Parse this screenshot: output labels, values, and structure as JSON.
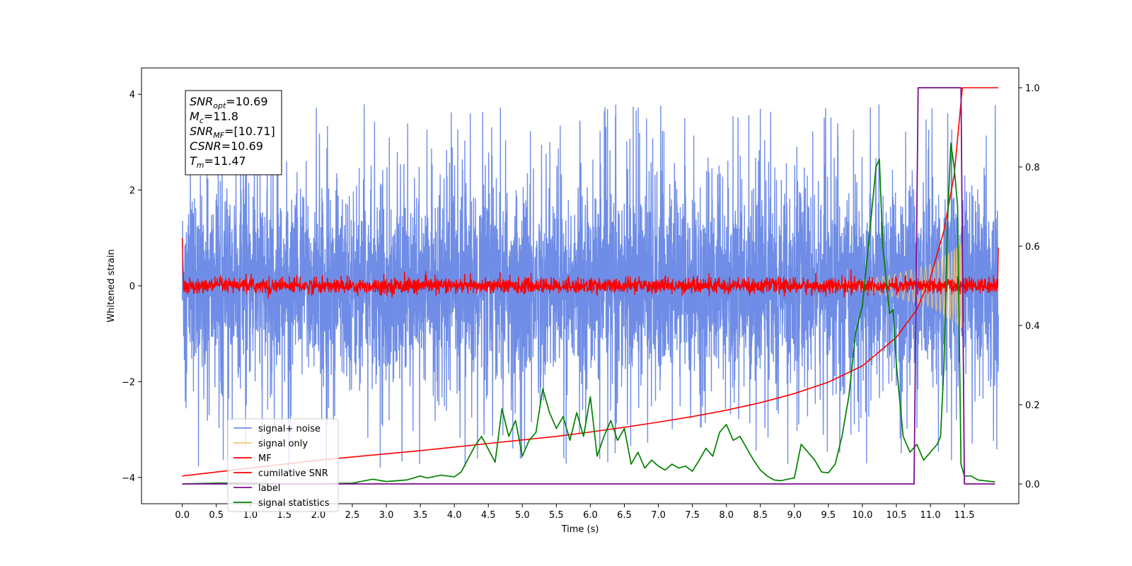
{
  "chart_data": {
    "type": "line",
    "title": "",
    "xlabel": "Time (s)",
    "ylabel": "Whitened strain",
    "y2label": "",
    "xlim": [
      -0.6,
      12.3
    ],
    "ylim": [
      -4.55,
      4.55
    ],
    "y2lim": [
      -0.05,
      1.05
    ],
    "x_ticks": [
      0.0,
      0.5,
      1.0,
      1.5,
      2.0,
      2.5,
      3.0,
      3.5,
      4.0,
      4.5,
      5.0,
      5.5,
      6.0,
      6.5,
      7.0,
      7.5,
      8.0,
      8.5,
      9.0,
      9.5,
      10.0,
      10.5,
      11.0,
      11.5
    ],
    "x_tick_labels": [
      "0.0",
      "0.5",
      "1.0",
      "1.5",
      "2.0",
      "2.5",
      "3.0",
      "3.5",
      "4.0",
      "4.5",
      "5.0",
      "5.5",
      "6.0",
      "6.5",
      "7.0",
      "7.5",
      "8.0",
      "8.5",
      "9.0",
      "9.5",
      "10.0",
      "10.5",
      "11.0",
      "11.5"
    ],
    "y_ticks": [
      -4,
      -2,
      0,
      2,
      4
    ],
    "y_tick_labels": [
      "−4",
      "−2",
      "0",
      "2",
      "4"
    ],
    "y2_ticks": [
      0.0,
      0.2,
      0.4,
      0.6,
      0.8,
      1.0
    ],
    "y2_tick_labels": [
      "0.0",
      "0.2",
      "0.4",
      "0.6",
      "0.8",
      "1.0"
    ],
    "grid": false,
    "legend_position": "lower-left",
    "annotation": {
      "lines": [
        {
          "sym": "SNR",
          "sub": "opt",
          "val": "=10.69"
        },
        {
          "sym": "M",
          "sub": "c",
          "val": "=11.8"
        },
        {
          "sym": "SNR",
          "sub": "MF",
          "val": "=[10.71]"
        },
        {
          "sym": "CSNR",
          "sub": "",
          "val": "=10.69"
        },
        {
          "sym": "T",
          "sub": "m",
          "val": "=11.47"
        }
      ]
    },
    "series": [
      {
        "name": "signal+ noise",
        "axis": "left",
        "color": "#6f8de6",
        "kind": "noise",
        "x_range": [
          0.0,
          12.0
        ],
        "amplitude_std": 1.25,
        "envelope_peak": 4.1
      },
      {
        "name": "signal only",
        "axis": "left",
        "color": "#f5c77a",
        "kind": "chirp",
        "x_range": [
          0.0,
          11.47
        ],
        "merger_time": 11.47,
        "envelope": {
          "x": [
            9.5,
            10.0,
            10.5,
            11.0,
            11.3,
            11.47
          ],
          "y": [
            0.06,
            0.12,
            0.25,
            0.45,
            0.7,
            0.9
          ]
        }
      },
      {
        "name": "MF",
        "axis": "left",
        "color": "#ff0000",
        "kind": "mf_noise",
        "x_range": [
          0.0,
          12.0
        ],
        "amplitude_std": 0.08,
        "start_value": 1.0,
        "end_value": 0.8
      },
      {
        "name": "cumilative SNR",
        "axis": "right",
        "color": "#ff0000",
        "x": [
          0.0,
          0.5,
          1.0,
          1.5,
          2.0,
          2.5,
          3.0,
          3.5,
          4.0,
          4.5,
          5.0,
          5.5,
          6.0,
          6.5,
          7.0,
          7.5,
          8.0,
          8.5,
          9.0,
          9.5,
          10.0,
          10.5,
          10.8,
          11.0,
          11.2,
          11.35,
          11.47,
          12.0
        ],
        "y": [
          0.02,
          0.03,
          0.04,
          0.05,
          0.06,
          0.068,
          0.076,
          0.084,
          0.093,
          0.102,
          0.111,
          0.12,
          0.131,
          0.143,
          0.156,
          0.17,
          0.186,
          0.205,
          0.228,
          0.257,
          0.298,
          0.37,
          0.44,
          0.52,
          0.64,
          0.78,
          1.0,
          1.0
        ]
      },
      {
        "name": "label",
        "axis": "right",
        "color": "#7b0f8e",
        "x": [
          0.0,
          10.76,
          10.82,
          11.45,
          11.5,
          11.95
        ],
        "y": [
          0.0,
          0.0,
          1.0,
          1.0,
          0.0,
          0.0
        ]
      },
      {
        "name": "signal statistics",
        "axis": "right",
        "color": "#008000",
        "x": [
          0.0,
          0.5,
          1.0,
          1.5,
          2.0,
          2.5,
          2.8,
          3.0,
          3.3,
          3.5,
          3.6,
          3.8,
          4.0,
          4.1,
          4.3,
          4.4,
          4.6,
          4.7,
          4.8,
          4.9,
          5.0,
          5.1,
          5.2,
          5.3,
          5.4,
          5.5,
          5.6,
          5.7,
          5.8,
          5.9,
          6.0,
          6.1,
          6.2,
          6.3,
          6.4,
          6.5,
          6.6,
          6.7,
          6.8,
          6.9,
          7.0,
          7.1,
          7.2,
          7.3,
          7.4,
          7.5,
          7.6,
          7.7,
          7.8,
          7.9,
          8.0,
          8.1,
          8.2,
          8.3,
          8.4,
          8.5,
          8.6,
          8.7,
          8.8,
          8.9,
          9.0,
          9.1,
          9.2,
          9.3,
          9.4,
          9.5,
          9.6,
          9.7,
          9.8,
          9.9,
          10.0,
          10.1,
          10.2,
          10.25,
          10.3,
          10.4,
          10.45,
          10.5,
          10.6,
          10.7,
          10.8,
          10.9,
          11.0,
          11.1,
          11.15,
          11.2,
          11.25,
          11.3,
          11.35,
          11.4,
          11.45,
          11.5,
          11.6,
          11.7,
          11.8,
          11.95
        ],
        "y": [
          0.0,
          0.002,
          0.002,
          0.0,
          0.0,
          0.002,
          0.012,
          0.006,
          0.01,
          0.02,
          0.015,
          0.022,
          0.018,
          0.03,
          0.095,
          0.12,
          0.055,
          0.19,
          0.12,
          0.16,
          0.07,
          0.11,
          0.13,
          0.24,
          0.18,
          0.14,
          0.17,
          0.11,
          0.18,
          0.12,
          0.22,
          0.07,
          0.12,
          0.16,
          0.11,
          0.14,
          0.05,
          0.08,
          0.04,
          0.06,
          0.045,
          0.035,
          0.05,
          0.04,
          0.045,
          0.032,
          0.06,
          0.09,
          0.07,
          0.13,
          0.15,
          0.11,
          0.12,
          0.09,
          0.06,
          0.035,
          0.02,
          0.01,
          0.008,
          0.012,
          0.015,
          0.1,
          0.08,
          0.06,
          0.03,
          0.028,
          0.05,
          0.12,
          0.22,
          0.38,
          0.45,
          0.62,
          0.8,
          0.82,
          0.6,
          0.43,
          0.44,
          0.3,
          0.12,
          0.08,
          0.1,
          0.06,
          0.08,
          0.1,
          0.12,
          0.3,
          0.65,
          0.86,
          0.8,
          0.7,
          0.05,
          0.02,
          0.02,
          0.01,
          0.008,
          0.005
        ]
      }
    ]
  }
}
